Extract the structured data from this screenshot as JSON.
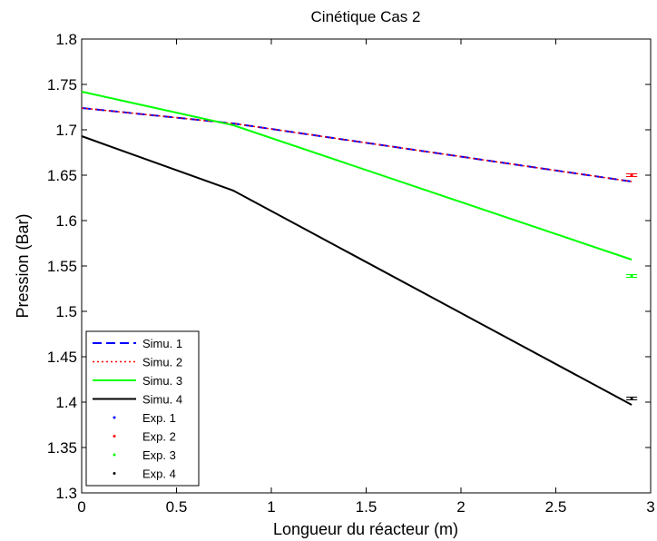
{
  "chart_data": {
    "type": "line",
    "title": "Cinétique Cas 2",
    "xlabel": "Longueur du réacteur (m)",
    "ylabel": "Pression (Bar)",
    "xlim": [
      0,
      3
    ],
    "ylim": [
      1.3,
      1.8
    ],
    "x_ticks": [
      "0",
      "0.5",
      "1",
      "1.5",
      "2",
      "2.5",
      "3"
    ],
    "y_ticks": [
      "1.3",
      "1.35",
      "1.4",
      "1.45",
      "1.5",
      "1.55",
      "1.6",
      "1.65",
      "1.7",
      "1.75",
      "1.8"
    ],
    "grid": false,
    "legend_position": "bottom-left",
    "series": [
      {
        "name": "Simu. 1",
        "color": "#0000ff",
        "style": "dashed",
        "x": [
          0,
          0.8,
          2.9
        ],
        "y": [
          1.724,
          1.707,
          1.643
        ]
      },
      {
        "name": "Simu. 2",
        "color": "#ff0000",
        "style": "dotted",
        "x": [
          0,
          0.8,
          2.9
        ],
        "y": [
          1.724,
          1.707,
          1.643
        ]
      },
      {
        "name": "Simu. 3",
        "color": "#00ff00",
        "style": "solid",
        "x": [
          0,
          0.8,
          2.9
        ],
        "y": [
          1.742,
          1.705,
          1.557
        ]
      },
      {
        "name": "Simu. 4",
        "color": "#000000",
        "style": "solid",
        "x": [
          0,
          0.8,
          2.9
        ],
        "y": [
          1.693,
          1.633,
          1.397
        ]
      }
    ],
    "points": [
      {
        "name": "Exp. 1",
        "color": "#0000ff",
        "x": 2.9,
        "y": 1.65
      },
      {
        "name": "Exp. 2",
        "color": "#ff0000",
        "x": 2.9,
        "y": 1.65
      },
      {
        "name": "Exp. 3",
        "color": "#00ff00",
        "x": 2.9,
        "y": 1.539
      },
      {
        "name": "Exp. 4",
        "color": "#000000",
        "x": 2.9,
        "y": 1.404
      }
    ]
  }
}
